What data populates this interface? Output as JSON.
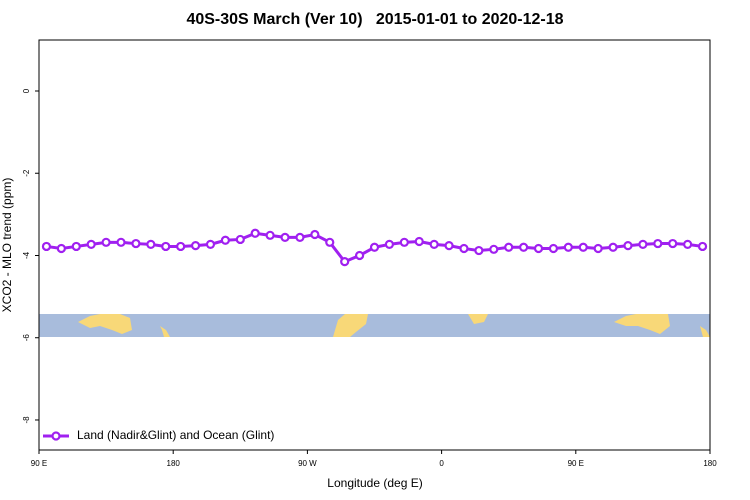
{
  "chart_data": {
    "type": "line",
    "title": "40S-30S March (Ver 10)   2015-01-01 to 2020-12-18",
    "x_label": "Longitude (deg E)",
    "y_label": "XCO2 - MLO trend (ppm)",
    "xlim": [
      90,
      540
    ],
    "ylim": [
      -8.73,
      1.24
    ],
    "xticks": [
      {
        "value": 90,
        "label": "90 E"
      },
      180,
      {
        "value": 270,
        "label": "90 W"
      },
      {
        "value": 360,
        "label": "0"
      },
      {
        "value": 450,
        "label": "90 E"
      },
      {
        "value": 540,
        "label": "180"
      }
    ],
    "yticks": [
      0,
      -2,
      -4,
      -6,
      -8
    ],
    "legend_position": "bottom-left",
    "series": [
      {
        "name": "Land (Nadir&Glint) and Ocean (Glint)",
        "color": "#a020f0",
        "x": [
          95,
          105,
          115,
          125,
          135,
          145,
          155,
          165,
          175,
          185,
          195,
          205,
          215,
          225,
          235,
          245,
          255,
          265,
          275,
          285,
          295,
          305,
          315,
          325,
          335,
          345,
          355,
          365,
          375,
          385,
          395,
          405,
          415,
          425,
          435,
          445,
          455,
          465,
          475,
          485,
          495,
          505,
          515,
          525,
          535
        ],
        "values": [
          -3.78,
          -3.83,
          -3.78,
          -3.73,
          -3.68,
          -3.68,
          -3.71,
          -3.73,
          -3.78,
          -3.78,
          -3.76,
          -3.73,
          -3.63,
          -3.61,
          -3.46,
          -3.51,
          -3.56,
          -3.56,
          -3.49,
          -3.68,
          -4.15,
          -4.0,
          -3.8,
          -3.73,
          -3.68,
          -3.66,
          -3.73,
          -3.76,
          -3.83,
          -3.88,
          -3.85,
          -3.8,
          -3.8,
          -3.83,
          -3.83,
          -3.8,
          -3.8,
          -3.83,
          -3.8,
          -3.76,
          -3.73,
          -3.71,
          -3.71,
          -3.73,
          -3.78
        ]
      }
    ]
  }
}
